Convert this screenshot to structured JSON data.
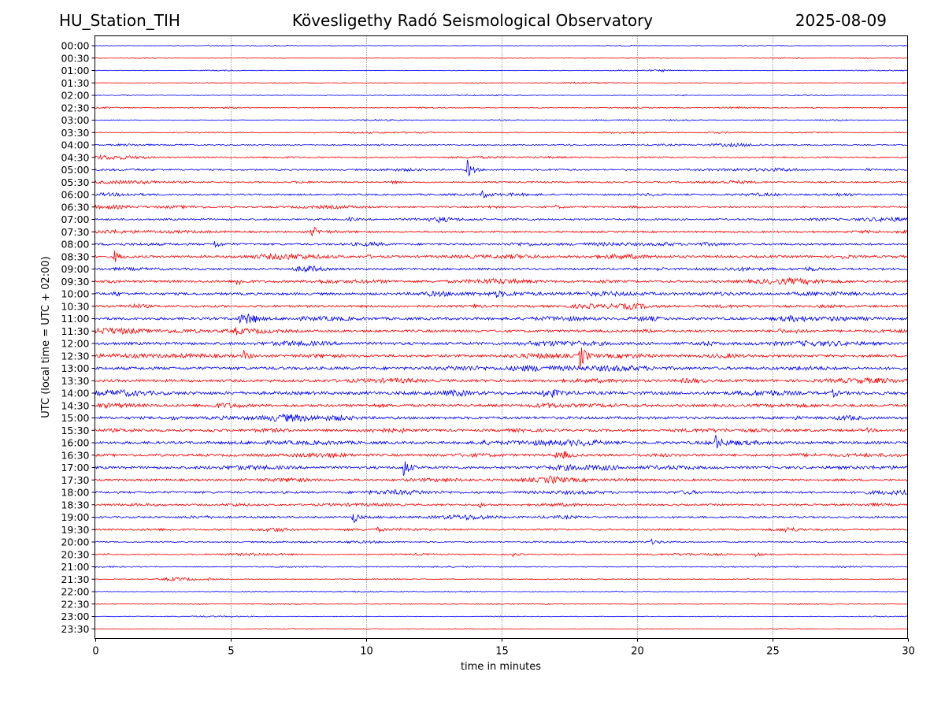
{
  "header": {
    "station": "HU_Station_TIH",
    "title": "Kövesligethy Radó Seismological Observatory",
    "date": "2025-08-09"
  },
  "chart_data": {
    "type": "line",
    "xlabel": "time in minutes",
    "ylabel": "UTC (local time = UTC + 02:00)",
    "xlim": [
      0,
      30
    ],
    "xticks": [
      0,
      5,
      10,
      15,
      20,
      25,
      30
    ],
    "grid": "vertical dotted at every 5 minutes",
    "trace_colors": [
      "#0000ff",
      "#ff0000"
    ],
    "rows": [
      {
        "label": "00:00",
        "noise": 0.3,
        "events": [
          {
            "t": 3.1,
            "a": 0.5
          },
          {
            "t": 20.6,
            "a": 0.3
          }
        ]
      },
      {
        "label": "00:30",
        "noise": 0.35,
        "events": []
      },
      {
        "label": "01:00",
        "noise": 0.35,
        "events": [
          {
            "t": 20.9,
            "a": 1.0
          }
        ]
      },
      {
        "label": "01:30",
        "noise": 0.35,
        "events": [
          {
            "t": 29.8,
            "a": 1.2
          }
        ]
      },
      {
        "label": "02:00",
        "noise": 0.4,
        "events": [
          {
            "t": 1.0,
            "a": 1.0
          },
          {
            "t": 1.7,
            "a": 0.8
          }
        ]
      },
      {
        "label": "02:30",
        "noise": 0.45,
        "events": [
          {
            "t": 26.5,
            "a": 0.8
          },
          {
            "t": 29.0,
            "a": 0.8
          }
        ]
      },
      {
        "label": "03:00",
        "noise": 0.5,
        "events": []
      },
      {
        "label": "03:30",
        "noise": 0.55,
        "events": []
      },
      {
        "label": "04:00",
        "noise": 0.7,
        "events": [
          {
            "t": 10.5,
            "a": 1.0
          }
        ]
      },
      {
        "label": "04:30",
        "noise": 0.8,
        "events": [
          {
            "t": 1.7,
            "a": 1.5
          }
        ]
      },
      {
        "label": "05:00",
        "noise": 0.9,
        "events": [
          {
            "t": 13.75,
            "a": 12
          },
          {
            "t": 28.5,
            "a": 1.5
          }
        ]
      },
      {
        "label": "05:30",
        "noise": 0.9,
        "events": [
          {
            "t": 10.9,
            "a": 2.5
          }
        ]
      },
      {
        "label": "06:00",
        "noise": 1.0,
        "events": [
          {
            "t": 14.3,
            "a": 4.5
          }
        ]
      },
      {
        "label": "06:30",
        "noise": 1.0,
        "events": [
          {
            "t": 17.0,
            "a": 2
          }
        ]
      },
      {
        "label": "07:00",
        "noise": 1.1,
        "events": [
          {
            "t": 9.4,
            "a": 2.5
          },
          {
            "t": 12.7,
            "a": 2.5
          }
        ]
      },
      {
        "label": "07:30",
        "noise": 1.1,
        "events": [
          {
            "t": 8.0,
            "a": 8
          }
        ]
      },
      {
        "label": "08:00",
        "noise": 1.2,
        "events": [
          {
            "t": 4.4,
            "a": 5
          }
        ]
      },
      {
        "label": "08:30",
        "noise": 1.4,
        "events": [
          {
            "t": 0.7,
            "a": 8
          },
          {
            "t": 10.0,
            "a": 2
          },
          {
            "t": 27.6,
            "a": 3
          }
        ]
      },
      {
        "label": "09:00",
        "noise": 1.3,
        "events": [
          {
            "t": 20.8,
            "a": 2
          }
        ]
      },
      {
        "label": "09:30",
        "noise": 1.4,
        "events": [
          {
            "t": 0.4,
            "a": 3
          },
          {
            "t": 5.2,
            "a": 7
          },
          {
            "t": 18.6,
            "a": 3
          }
        ]
      },
      {
        "label": "10:00",
        "noise": 1.5,
        "events": [
          {
            "t": 0.7,
            "a": 3
          },
          {
            "t": 14.8,
            "a": 3
          }
        ]
      },
      {
        "label": "10:30",
        "noise": 1.4,
        "events": [
          {
            "t": 14.0,
            "a": 2
          }
        ]
      },
      {
        "label": "11:00",
        "noise": 1.6,
        "events": [
          {
            "t": 5.3,
            "a": 7
          },
          {
            "t": 5.6,
            "a": 9
          },
          {
            "t": 5.8,
            "a": 7
          }
        ]
      },
      {
        "label": "11:30",
        "noise": 1.5,
        "events": [
          {
            "t": 5.2,
            "a": 3
          },
          {
            "t": 25.2,
            "a": 4
          },
          {
            "t": 25.9,
            "a": 3
          }
        ]
      },
      {
        "label": "12:00",
        "noise": 1.7,
        "events": [
          {
            "t": 22.2,
            "a": 3
          },
          {
            "t": 22.6,
            "a": 3
          }
        ]
      },
      {
        "label": "12:30",
        "noise": 1.6,
        "events": [
          {
            "t": 5.5,
            "a": 6
          },
          {
            "t": 17.9,
            "a": 18
          }
        ]
      },
      {
        "label": "13:00",
        "noise": 1.8,
        "events": []
      },
      {
        "label": "13:30",
        "noise": 1.6,
        "events": []
      },
      {
        "label": "14:00",
        "noise": 1.9,
        "events": [
          {
            "t": 16.5,
            "a": 6
          },
          {
            "t": 16.9,
            "a": 5
          },
          {
            "t": 17.3,
            "a": 3
          },
          {
            "t": 27.2,
            "a": 5
          }
        ]
      },
      {
        "label": "14:30",
        "noise": 1.6,
        "events": []
      },
      {
        "label": "15:00",
        "noise": 1.6,
        "events": [
          {
            "t": 2.8,
            "a": 2
          },
          {
            "t": 25.8,
            "a": 2
          }
        ]
      },
      {
        "label": "15:30",
        "noise": 1.5,
        "events": [
          {
            "t": 4.2,
            "a": 2
          },
          {
            "t": 11.3,
            "a": 2
          },
          {
            "t": 28.5,
            "a": 2
          }
        ]
      },
      {
        "label": "16:00",
        "noise": 1.6,
        "events": [
          {
            "t": 22.9,
            "a": 9
          }
        ]
      },
      {
        "label": "16:30",
        "noise": 1.5,
        "events": [
          {
            "t": 17.0,
            "a": 4
          },
          {
            "t": 17.3,
            "a": 6
          }
        ]
      },
      {
        "label": "17:00",
        "noise": 1.6,
        "events": [
          {
            "t": 11.4,
            "a": 12
          }
        ]
      },
      {
        "label": "17:30",
        "noise": 1.3,
        "events": [
          {
            "t": 7.2,
            "a": 3
          },
          {
            "t": 16.8,
            "a": 2
          }
        ]
      },
      {
        "label": "18:00",
        "noise": 1.3,
        "events": []
      },
      {
        "label": "18:30",
        "noise": 1.1,
        "events": [
          {
            "t": 14.2,
            "a": 3
          }
        ]
      },
      {
        "label": "19:00",
        "noise": 1.1,
        "events": [
          {
            "t": 9.5,
            "a": 9
          }
        ]
      },
      {
        "label": "19:30",
        "noise": 1.0,
        "events": [
          {
            "t": 10.4,
            "a": 2.5
          },
          {
            "t": 25.5,
            "a": 2
          }
        ]
      },
      {
        "label": "20:00",
        "noise": 0.7,
        "events": [
          {
            "t": 9.3,
            "a": 2
          },
          {
            "t": 20.5,
            "a": 3
          }
        ]
      },
      {
        "label": "20:30",
        "noise": 0.7,
        "events": [
          {
            "t": 15.4,
            "a": 3
          },
          {
            "t": 24.4,
            "a": 3
          }
        ]
      },
      {
        "label": "21:00",
        "noise": 0.5,
        "events": []
      },
      {
        "label": "21:30",
        "noise": 0.5,
        "events": [
          {
            "t": 4.2,
            "a": 2
          },
          {
            "t": 24.1,
            "a": 1.5
          }
        ]
      },
      {
        "label": "22:00",
        "noise": 0.4,
        "events": []
      },
      {
        "label": "22:30",
        "noise": 0.35,
        "events": []
      },
      {
        "label": "23:00",
        "noise": 0.35,
        "events": []
      },
      {
        "label": "23:30",
        "noise": 0.3,
        "events": []
      }
    ]
  }
}
